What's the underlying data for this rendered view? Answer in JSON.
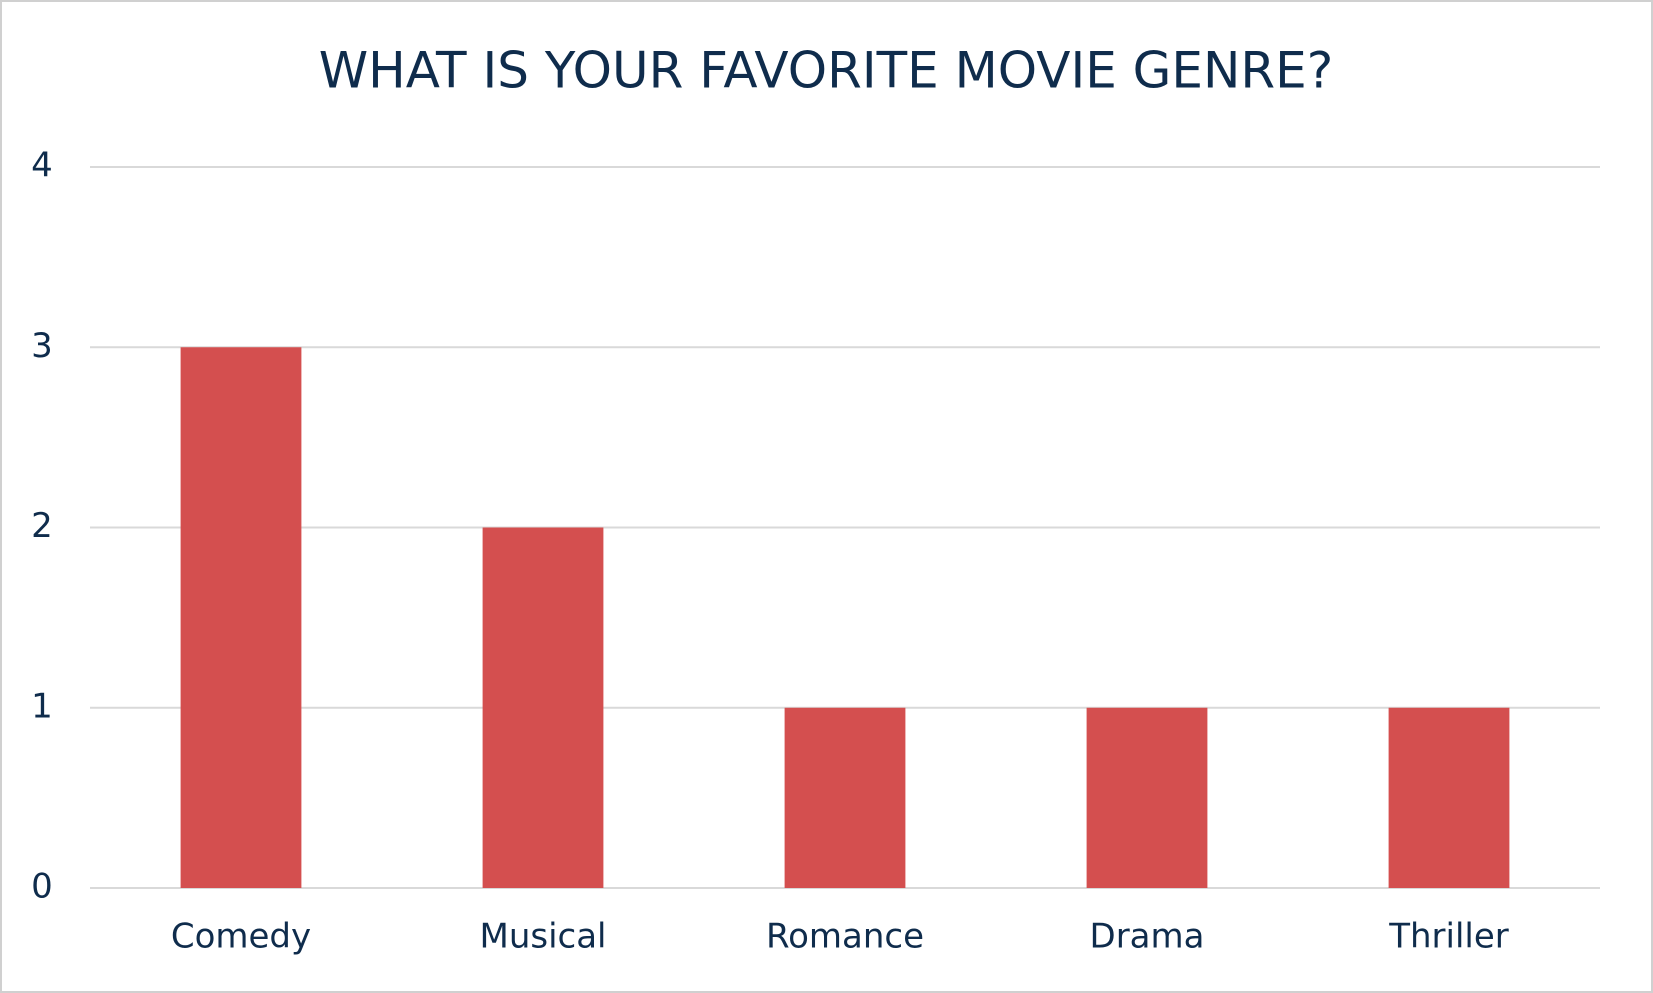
{
  "chart_data": {
    "type": "bar",
    "title": "WHAT IS YOUR FAVORITE MOVIE GENRE?",
    "categories": [
      "Comedy",
      "Musical",
      "Romance",
      "Drama",
      "Thriller"
    ],
    "values": [
      3,
      2,
      1,
      1,
      1
    ],
    "color": "#d44f4f",
    "ylim": [
      0,
      4
    ],
    "yticks": [
      0,
      1,
      2,
      3,
      4
    ],
    "grid": true
  }
}
